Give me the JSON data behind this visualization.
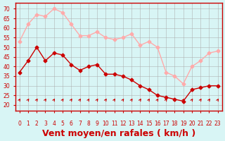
{
  "hours": [
    0,
    1,
    2,
    3,
    4,
    5,
    6,
    7,
    8,
    9,
    10,
    11,
    12,
    13,
    14,
    15,
    16,
    17,
    18,
    19,
    20,
    21,
    22,
    23
  ],
  "wind_avg": [
    37,
    43,
    50,
    43,
    47,
    46,
    41,
    38,
    40,
    41,
    36,
    36,
    35,
    33,
    30,
    28,
    25,
    24,
    23,
    22,
    28,
    29,
    30,
    30
  ],
  "wind_gust": [
    53,
    62,
    67,
    66,
    70,
    68,
    62,
    56,
    56,
    58,
    55,
    54,
    55,
    57,
    51,
    53,
    50,
    37,
    35,
    31,
    40,
    43,
    47,
    48
  ],
  "avg_color": "#cc0000",
  "gust_color": "#ffaaaa",
  "bg_color": "#d8f5f5",
  "grid_color": "#aaaaaa",
  "xlabel": "Vent moyen/en rafales ( km/h )",
  "xlabel_color": "#cc0000",
  "xlabel_fontsize": 9,
  "tick_color": "#cc0000",
  "yticks": [
    20,
    25,
    30,
    35,
    40,
    45,
    50,
    55,
    60,
    65,
    70
  ],
  "ylim": [
    17,
    73
  ],
  "arrow_color": "#cc0000"
}
